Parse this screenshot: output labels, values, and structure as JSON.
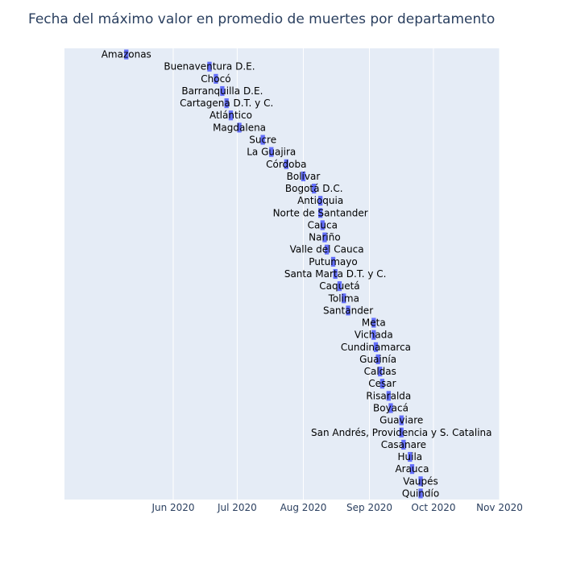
{
  "chart_data": {
    "type": "bar",
    "orientation": "horizontal",
    "title": "Fecha del máximo valor en promedio de muertes por departamento",
    "xlabel": "",
    "ylabel": "",
    "grid": true,
    "colors": {
      "background": "#E5ECF6",
      "grid": "#FFFFFF",
      "bar": "#636EFA",
      "text": "#2a3f5f"
    },
    "x_axis": {
      "type": "date",
      "range": [
        "2020-04-11",
        "2020-11-01"
      ],
      "ticks": [
        {
          "date": "2020-06-01",
          "label": "Jun 2020"
        },
        {
          "date": "2020-07-01",
          "label": "Jul 2020"
        },
        {
          "date": "2020-08-01",
          "label": "Aug 2020"
        },
        {
          "date": "2020-09-01",
          "label": "Sep 2020"
        },
        {
          "date": "2020-10-01",
          "label": "Oct 2020"
        },
        {
          "date": "2020-11-01",
          "label": "Nov 2020"
        }
      ]
    },
    "bars": [
      {
        "label": "Amazonas",
        "start": "2020-05-09",
        "end": "2020-05-11"
      },
      {
        "label": "Buenaventura D.E.",
        "start": "2020-06-17",
        "end": "2020-06-19"
      },
      {
        "label": "Chocó",
        "start": "2020-06-20",
        "end": "2020-06-22"
      },
      {
        "label": "Barranquilla D.E.",
        "start": "2020-06-23",
        "end": "2020-06-25"
      },
      {
        "label": "Cartagena D.T. y C.",
        "start": "2020-06-25",
        "end": "2020-06-27"
      },
      {
        "label": "Atlántico",
        "start": "2020-06-27",
        "end": "2020-06-29"
      },
      {
        "label": "Magdalena",
        "start": "2020-07-01",
        "end": "2020-07-03"
      },
      {
        "label": "Sucre",
        "start": "2020-07-12",
        "end": "2020-07-14"
      },
      {
        "label": "La Guajira",
        "start": "2020-07-16",
        "end": "2020-07-18"
      },
      {
        "label": "Córdoba",
        "start": "2020-07-23",
        "end": "2020-07-25"
      },
      {
        "label": "Bolívar",
        "start": "2020-07-31",
        "end": "2020-08-02"
      },
      {
        "label": "Bogotá D.C.",
        "start": "2020-08-05",
        "end": "2020-08-07"
      },
      {
        "label": "Antioquia",
        "start": "2020-08-08",
        "end": "2020-08-10"
      },
      {
        "label": "Norte de Santander",
        "start": "2020-08-08",
        "end": "2020-08-10"
      },
      {
        "label": "Cauca",
        "start": "2020-08-09",
        "end": "2020-08-11"
      },
      {
        "label": "Nariño",
        "start": "2020-08-10",
        "end": "2020-08-12"
      },
      {
        "label": "Valle del Cauca",
        "start": "2020-08-11",
        "end": "2020-08-13"
      },
      {
        "label": "Putumayo",
        "start": "2020-08-14",
        "end": "2020-08-16"
      },
      {
        "label": "Santa Marta D.T. y C.",
        "start": "2020-08-15",
        "end": "2020-08-17"
      },
      {
        "label": "Caquetá",
        "start": "2020-08-17",
        "end": "2020-08-19"
      },
      {
        "label": "Tolima",
        "start": "2020-08-19",
        "end": "2020-08-21"
      },
      {
        "label": "Santander",
        "start": "2020-08-21",
        "end": "2020-08-23"
      },
      {
        "label": "Meta",
        "start": "2020-09-02",
        "end": "2020-09-04"
      },
      {
        "label": "Vichada",
        "start": "2020-09-02",
        "end": "2020-09-04"
      },
      {
        "label": "Cundinamarca",
        "start": "2020-09-03",
        "end": "2020-09-05"
      },
      {
        "label": "Guainía",
        "start": "2020-09-04",
        "end": "2020-09-06"
      },
      {
        "label": "Caldas",
        "start": "2020-09-05",
        "end": "2020-09-07"
      },
      {
        "label": "Cesar",
        "start": "2020-09-06",
        "end": "2020-09-08"
      },
      {
        "label": "Risaralda",
        "start": "2020-09-09",
        "end": "2020-09-11"
      },
      {
        "label": "Boyacá",
        "start": "2020-09-10",
        "end": "2020-09-12"
      },
      {
        "label": "Guaviare",
        "start": "2020-09-15",
        "end": "2020-09-17"
      },
      {
        "label": "San Andrés, Providencia y S. Catalina",
        "start": "2020-09-15",
        "end": "2020-09-17"
      },
      {
        "label": "Casanare",
        "start": "2020-09-16",
        "end": "2020-09-18"
      },
      {
        "label": "Huila",
        "start": "2020-09-19",
        "end": "2020-09-21"
      },
      {
        "label": "Arauca",
        "start": "2020-09-20",
        "end": "2020-09-22"
      },
      {
        "label": "Vaupés",
        "start": "2020-09-24",
        "end": "2020-09-26"
      },
      {
        "label": "Quindío",
        "start": "2020-09-24",
        "end": "2020-09-26"
      }
    ]
  }
}
